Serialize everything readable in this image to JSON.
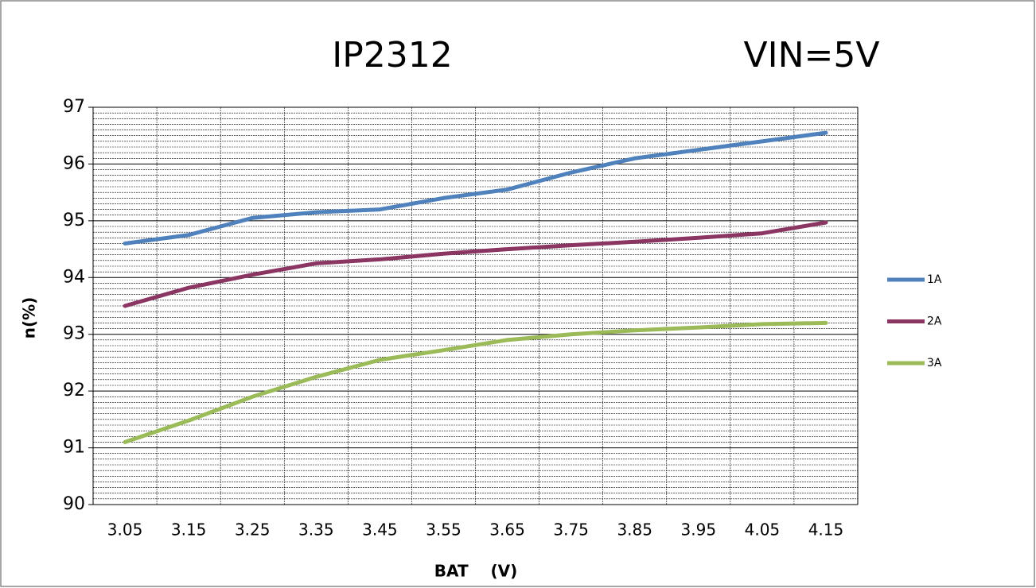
{
  "chart_data": {
    "type": "line",
    "title": "IP2312",
    "subtitle": "VIN=5V",
    "xlabel": "BAT    (V)",
    "ylabel": "n(%)",
    "categories": [
      "3.05",
      "3.15",
      "3.25",
      "3.35",
      "3.45",
      "3.55",
      "3.65",
      "3.75",
      "3.85",
      "3.95",
      "4.05",
      "4.15"
    ],
    "series": [
      {
        "name": "1A",
        "color": "#4f81bd",
        "values": [
          94.6,
          94.75,
          95.05,
          95.15,
          95.2,
          95.4,
          95.55,
          95.85,
          96.1,
          96.25,
          96.4,
          96.55
        ]
      },
      {
        "name": "2A",
        "color": "#8b3563",
        "values": [
          93.5,
          93.82,
          94.05,
          94.25,
          94.32,
          94.42,
          94.5,
          94.57,
          94.63,
          94.7,
          94.78,
          94.97
        ]
      },
      {
        "name": "3A",
        "color": "#9bbb59",
        "values": [
          91.1,
          91.48,
          91.9,
          92.25,
          92.55,
          92.72,
          92.9,
          93.0,
          93.07,
          93.12,
          93.18,
          93.2
        ]
      }
    ],
    "ylim": [
      90,
      97
    ],
    "yticks": [
      90,
      91,
      92,
      93,
      94,
      95,
      96,
      97
    ],
    "grid": true,
    "minor_grid": true,
    "legend": "right"
  }
}
